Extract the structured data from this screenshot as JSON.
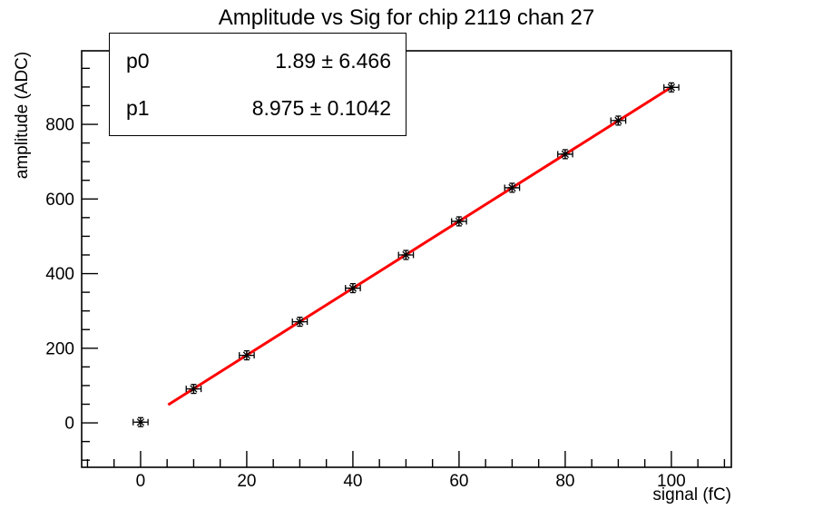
{
  "window": {
    "background": "#ffffff",
    "foreground": "#000000"
  },
  "chart_data": {
    "type": "scatter",
    "title": "Amplitude vs Sig for chip 2119 chan 27",
    "xlabel": "signal (fC)",
    "ylabel": "amplitude (ADC)",
    "xlim": [
      -11.1,
      111.3
    ],
    "ylim": [
      -119,
      997
    ],
    "x_major_ticks": [
      0,
      20,
      40,
      60,
      80,
      100
    ],
    "x_minor_step": 5,
    "y_major_ticks": [
      0,
      200,
      400,
      600,
      800
    ],
    "y_minor_step": 50,
    "grid": false,
    "legend": "none",
    "marker": "star-8-ray",
    "marker_color": "#000000",
    "line_color": "#ff0000",
    "points": [
      {
        "x": 0,
        "y": 2
      },
      {
        "x": 10,
        "y": 91
      },
      {
        "x": 20,
        "y": 181
      },
      {
        "x": 30,
        "y": 271
      },
      {
        "x": 40,
        "y": 361
      },
      {
        "x": 50,
        "y": 450
      },
      {
        "x": 60,
        "y": 540
      },
      {
        "x": 70,
        "y": 630
      },
      {
        "x": 80,
        "y": 720
      },
      {
        "x": 90,
        "y": 810
      },
      {
        "x": 100,
        "y": 899
      }
    ],
    "xerr": 1.4,
    "yerr": 12,
    "fit": {
      "p0": 1.89,
      "p0_error": 6.466,
      "p1": 8.975,
      "p1_error": 0.1042,
      "x_start": 5.2,
      "x_end": 100
    },
    "stats_box": {
      "rows": [
        {
          "name": "p0",
          "value": "1.89 ± 6.466"
        },
        {
          "name": "p1",
          "value": "8.975 ± 0.1042"
        }
      ]
    }
  }
}
